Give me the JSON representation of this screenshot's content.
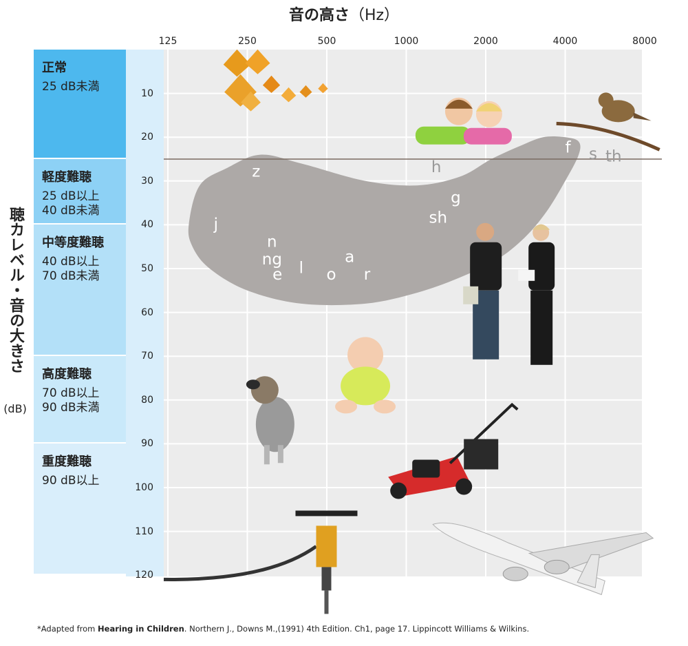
{
  "chart_data": {
    "type": "scatter",
    "title": "音の高さ",
    "title_unit": "（Hz）",
    "xlabel": "音の高さ（Hz）",
    "ylabel": "聴カレベル・音の大きさ",
    "ylabel_unit": "(dB)",
    "xscale": "log2",
    "x_ticks": [
      125,
      250,
      500,
      1000,
      2000,
      4000,
      8000
    ],
    "y_ticks": [
      10,
      20,
      30,
      40,
      50,
      60,
      70,
      80,
      90,
      100,
      110,
      120
    ],
    "xlim": [
      125,
      8000
    ],
    "ylim": [
      0,
      120
    ],
    "y_inverted": true,
    "grid": true,
    "normal_threshold_db": 25,
    "hearing_categories": [
      {
        "title": "正常",
        "lines": [
          "25 dB未満"
        ],
        "range_db": [
          0,
          25
        ],
        "color": "#4db8ee"
      },
      {
        "title": "軽度難聴",
        "lines": [
          "25 dB以上",
          "40 dB未満"
        ],
        "range_db": [
          25,
          40
        ],
        "color": "#8dd1f5"
      },
      {
        "title": "中等度難聴",
        "lines": [
          "40 dB以上",
          "70 dB未満"
        ],
        "range_db": [
          40,
          70
        ],
        "color": "#b3e0f8"
      },
      {
        "title": "高度難聴",
        "lines": [
          "70 dB以上",
          "90 dB未満"
        ],
        "range_db": [
          70,
          90
        ],
        "color": "#c9e9fa"
      },
      {
        "title": "重度難聴",
        "lines": [
          "90 dB以上"
        ],
        "range_db": [
          90,
          120
        ],
        "color": "#d9eefb"
      }
    ],
    "speech_sounds": [
      {
        "label": "z",
        "hz": 270,
        "db": 28,
        "color": "#ffffff"
      },
      {
        "label": "j",
        "hz": 190,
        "db": 40,
        "color": "#ffffff"
      },
      {
        "label": "n",
        "hz": 310,
        "db": 44,
        "color": "#ffffff"
      },
      {
        "label": "ng",
        "hz": 310,
        "db": 48,
        "color": "#ffffff"
      },
      {
        "label": "e",
        "hz": 325,
        "db": 51.5,
        "color": "#ffffff"
      },
      {
        "label": "l",
        "hz": 400,
        "db": 50,
        "color": "#ffffff"
      },
      {
        "label": "o",
        "hz": 520,
        "db": 51.5,
        "color": "#ffffff"
      },
      {
        "label": "a",
        "hz": 610,
        "db": 47.5,
        "color": "#ffffff"
      },
      {
        "label": "r",
        "hz": 710,
        "db": 51.5,
        "color": "#ffffff"
      },
      {
        "label": "sh",
        "hz": 1320,
        "db": 38.5,
        "color": "#ffffff"
      },
      {
        "label": "g",
        "hz": 1540,
        "db": 34,
        "color": "#ffffff"
      },
      {
        "label": "h",
        "hz": 1300,
        "db": 27,
        "color": "#999999"
      },
      {
        "label": "f",
        "hz": 4100,
        "db": 22.5,
        "color": "#ffffff"
      },
      {
        "label": "s",
        "hz": 5100,
        "db": 24,
        "color": "#999999"
      },
      {
        "label": "th",
        "hz": 6100,
        "db": 24.5,
        "color": "#999999"
      }
    ],
    "illustrations": [
      {
        "name": "falling-leaves",
        "hz": 250,
        "db": 5
      },
      {
        "name": "whispering-children",
        "hz": 1700,
        "db": 16
      },
      {
        "name": "bird-on-branch",
        "hz": 5000,
        "db": 15
      },
      {
        "name": "people-talking",
        "hz": 2500,
        "db": 55
      },
      {
        "name": "baby",
        "hz": 700,
        "db": 76
      },
      {
        "name": "barking-dog",
        "hz": 300,
        "db": 84
      },
      {
        "name": "lawn-mower",
        "hz": 1300,
        "db": 96
      },
      {
        "name": "jackhammer",
        "hz": 250,
        "db": 115
      },
      {
        "name": "airplane",
        "hz": 3500,
        "db": 115
      }
    ],
    "colors": {
      "plot_bg": "#ececec",
      "tick_col": "#d9eefb",
      "speech_banana": "#ada9a7",
      "threshold_line": "#7a6a60"
    }
  },
  "footnote": {
    "prefix": "*Adapted from ",
    "bold": "Hearing in Children",
    "rest": ". Northern J., Downs M.,(1991) 4th Edition. Ch1, page 17. Lippincott Williams & Wilkins."
  }
}
